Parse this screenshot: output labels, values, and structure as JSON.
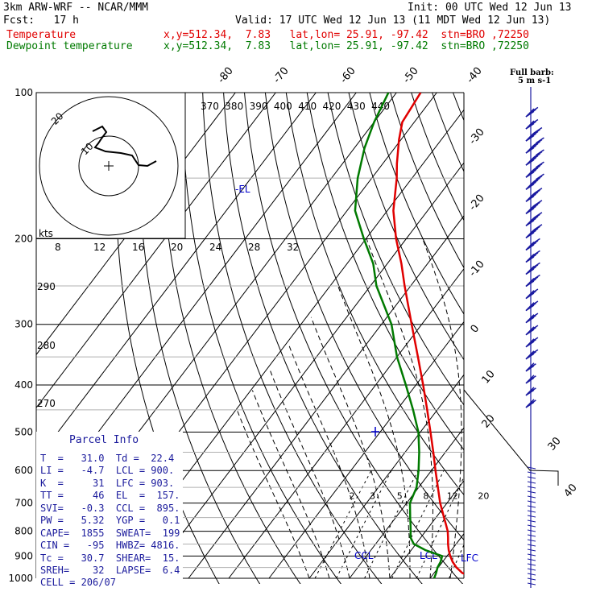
{
  "header": {
    "model": "3km ARW-WRF -- NCAR/MMM",
    "init": "Init: 00 UTC Wed 12 Jun 13",
    "fcst": "Fcst:   17 h",
    "valid": "Valid: 17 UTC Wed 12 Jun 13 (11 MDT Wed 12 Jun 13)",
    "temp_label": "Temperature",
    "dew_label": "Dewpoint temperature",
    "temp_loc": "x,y=512.34,  7.83   lat,lon= 25.91, -97.42  stn=BRO ,72250",
    "dew_loc": "x,y=512.34,  7.83   lat,lon= 25.91, -97.42  stn=BRO ,72250"
  },
  "barb_legend": {
    "title": "Full barb:",
    "unit": "5 m s-1"
  },
  "parcel": {
    "title": "Parcel Info",
    "rows": [
      "T  =   31.0  Td =  22.4",
      "LI =   -4.7  LCL = 900.",
      "K  =     31  LFC = 903.",
      "TT =     46  EL  =  157.",
      "SVI=   -0.3  CCL =  895.",
      "PW =   5.32  YGP =   0.1",
      "CAPE=  1855  SWEAT=  199",
      "CIN =   -95  HWBZ= 4816.",
      "Tc =   30.7  SHEAR=  15.",
      "SREH=    32  LAPSE=  6.4",
      "CELL = 206/07"
    ]
  },
  "chart_data": {
    "type": "line",
    "title": "",
    "colors": {
      "temperature": "#e00000",
      "dewpoint": "#007a00",
      "grid": "#000000",
      "parcel": "#0000cc",
      "barbs": "#1a1aa0"
    },
    "pressure_ticks": [
      100,
      200,
      300,
      400,
      500,
      600,
      700,
      800,
      900,
      1000
    ],
    "temperature_ticks": [
      -80,
      -70,
      -60,
      -50,
      -40,
      -30,
      -20,
      -10,
      0,
      10,
      20,
      30,
      40
    ],
    "theta_labels": [
      "370",
      "380",
      "390",
      "400",
      "410",
      "420",
      "430",
      "440"
    ],
    "theta_left_labels": [
      "290",
      "280",
      "270"
    ],
    "mixing_ratio_labels": [
      "2",
      "3",
      "5",
      "8",
      "12",
      "20"
    ],
    "hodograph": {
      "unit": "kts",
      "ring_labels": [
        "10",
        "20"
      ],
      "speed_labels": [
        "8",
        "12",
        "16",
        "20",
        "24",
        "28",
        "32"
      ]
    },
    "annotations": {
      "el": "-EL",
      "ccl": "CCL",
      "lcl": "LCL",
      "lfc": "LFC"
    },
    "series": [
      {
        "name": "Temperature",
        "points": [
          [
            1000,
            31.5
          ],
          [
            975,
            27
          ],
          [
            950,
            24.5
          ],
          [
            925,
            22.5
          ],
          [
            900,
            20.8
          ],
          [
            875,
            19.3
          ],
          [
            850,
            18.0
          ],
          [
            825,
            16.8
          ],
          [
            800,
            15.5
          ],
          [
            775,
            13.8
          ],
          [
            750,
            12.0
          ],
          [
            725,
            10.2
          ],
          [
            700,
            8.3
          ],
          [
            650,
            4.8
          ],
          [
            600,
            1.0
          ],
          [
            550,
            -3.0
          ],
          [
            500,
            -7.5
          ],
          [
            450,
            -12.5
          ],
          [
            400,
            -18.2
          ],
          [
            350,
            -24.8
          ],
          [
            300,
            -32.5
          ],
          [
            250,
            -41.5
          ],
          [
            225,
            -46.5
          ],
          [
            200,
            -52.5
          ],
          [
            175,
            -58.5
          ],
          [
            150,
            -63.8
          ],
          [
            140,
            -66.5
          ],
          [
            125,
            -70.5
          ],
          [
            115,
            -73.0
          ],
          [
            100,
            -74.0
          ]
        ]
      },
      {
        "name": "Dewpoint temperature",
        "points": [
          [
            1000,
            21.0
          ],
          [
            975,
            20.5
          ],
          [
            950,
            19.8
          ],
          [
            925,
            19.5
          ],
          [
            900,
            18.8
          ],
          [
            875,
            13.5
          ],
          [
            850,
            9.5
          ],
          [
            825,
            7.5
          ],
          [
            800,
            6.3
          ],
          [
            775,
            5.0
          ],
          [
            750,
            3.6
          ],
          [
            700,
            0.8
          ],
          [
            650,
            -0.5
          ],
          [
            600,
            -3.2
          ],
          [
            550,
            -6.5
          ],
          [
            500,
            -10.5
          ],
          [
            450,
            -16.0
          ],
          [
            400,
            -22.5
          ],
          [
            350,
            -30.0
          ],
          [
            300,
            -37.5
          ],
          [
            250,
            -48.5
          ],
          [
            225,
            -53.5
          ],
          [
            200,
            -60.5
          ],
          [
            175,
            -68.0
          ],
          [
            150,
            -73.5
          ],
          [
            130,
            -77.5
          ],
          [
            115,
            -80.0
          ],
          [
            100,
            -82.0
          ]
        ]
      }
    ],
    "wind_profile": [
      {
        "p": 100,
        "dir": 270,
        "spd": 5
      },
      {
        "p": 125,
        "dir": 250,
        "spd": 15
      },
      {
        "p": 150,
        "dir": 240,
        "spd": 25
      },
      {
        "p": 175,
        "dir": 245,
        "spd": 30
      },
      {
        "p": 200,
        "dir": 250,
        "spd": 30
      },
      {
        "p": 250,
        "dir": 255,
        "spd": 25
      },
      {
        "p": 300,
        "dir": 260,
        "spd": 20
      },
      {
        "p": 400,
        "dir": 270,
        "spd": 15
      },
      {
        "p": 500,
        "dir": 300,
        "spd": 10
      },
      {
        "p": 700,
        "dir": 200,
        "spd": 10
      },
      {
        "p": 850,
        "dir": 160,
        "spd": 10
      },
      {
        "p": 1000,
        "dir": 150,
        "spd": 5
      }
    ]
  }
}
